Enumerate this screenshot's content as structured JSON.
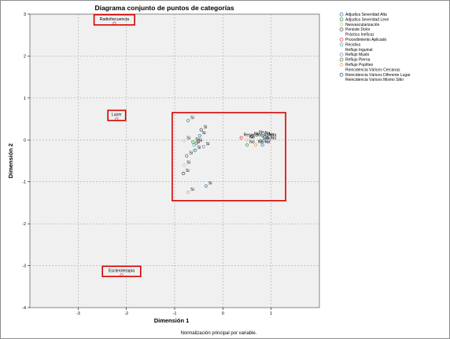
{
  "chart_data": {
    "type": "scatter",
    "title": "Diagrama conjunto de puntos de categorías",
    "xlabel": "Dimensión 1",
    "ylabel": "Dimensión 2",
    "footnote": "Normalización principal por variable.",
    "xlim": [
      -4,
      2
    ],
    "ylim": [
      -4,
      3
    ],
    "xticks": [
      -3,
      -2,
      -1,
      0,
      1
    ],
    "yticks": [
      -4,
      -3,
      -2,
      -1,
      0,
      1,
      2,
      3
    ],
    "grid": true,
    "legend_position": "right",
    "legend": [
      {
        "name": "Adjudica Severidad Alta",
        "color": "#3b7fb8",
        "marker": "circle"
      },
      {
        "name": "Adjudica Severidad Leve",
        "color": "#3aa24a",
        "marker": "circle"
      },
      {
        "name": "Neovascularización",
        "color": "#d9c9a0",
        "marker": "circle"
      },
      {
        "name": "Persiste Dolor",
        "color": "#555555",
        "marker": "circle"
      },
      {
        "name": "Práctica Ineficaz",
        "color": "#ffffff",
        "marker": "none"
      },
      {
        "name": "Procedimiento Aplicado",
        "color": "#e05050",
        "marker": "circle"
      },
      {
        "name": "Recidiva",
        "color": "#50b8b8",
        "marker": "circle"
      },
      {
        "name": "Reflujo Inguinal",
        "color": "#ffffff",
        "marker": "none"
      },
      {
        "name": "Reflujo Muslo",
        "color": "#8888cc",
        "marker": "circle"
      },
      {
        "name": "Reflujo Pierna",
        "color": "#5a8a3a",
        "marker": "circle"
      },
      {
        "name": "Reflujo Poplíteo",
        "color": "#e8a060",
        "marker": "circle"
      },
      {
        "name": "Reincidencia Várices Cercanas",
        "color": "#ffffff",
        "marker": "none"
      },
      {
        "name": "Reincidencia Várices Diferente Lugar",
        "color": "#2e6e8e",
        "marker": "circle"
      },
      {
        "name": "Reincidencia Várices Mismo Sitio",
        "color": "#ffffff",
        "marker": "none"
      }
    ],
    "points": [
      {
        "label": "Radiofrecuencia",
        "x": -2.25,
        "y": 2.78,
        "color": "#e05050",
        "boxed": true
      },
      {
        "label": "Laser",
        "x": -2.2,
        "y": 0.5,
        "color": "#e05050",
        "boxed": true
      },
      {
        "label": "Escleroterapia",
        "x": -2.1,
        "y": -3.22,
        "color": "#e05050",
        "boxed": true
      },
      {
        "label": "Resección Abierta",
        "x": 0.38,
        "y": 0.05,
        "color": "#e05050"
      },
      {
        "label": "Si",
        "x": -0.72,
        "y": 0.46,
        "color": "#3aa24a"
      },
      {
        "label": "Si",
        "x": -0.45,
        "y": 0.24,
        "color": "#555555"
      },
      {
        "label": "Si",
        "x": -0.48,
        "y": 0.1,
        "color": "#3b7fb8"
      },
      {
        "label": "Si",
        "x": -0.8,
        "y": -0.02,
        "color": "#d9c9a0"
      },
      {
        "label": "Si",
        "x": -0.62,
        "y": -0.05,
        "color": "#3aa24a"
      },
      {
        "label": "Si",
        "x": -0.55,
        "y": -0.08,
        "color": "#5a8a3a"
      },
      {
        "label": "Si",
        "x": -0.4,
        "y": -0.16,
        "color": "#8888cc"
      },
      {
        "label": "Si",
        "x": -0.6,
        "y": -0.12,
        "color": "#50b8b8"
      },
      {
        "label": "Si",
        "x": -0.58,
        "y": -0.25,
        "color": "#2e6e8e"
      },
      {
        "label": "Si",
        "x": -0.75,
        "y": -0.38,
        "color": "#3b7fb8"
      },
      {
        "label": "Si",
        "x": -0.8,
        "y": -0.6,
        "color": "#d9c9a0"
      },
      {
        "label": "Si",
        "x": -0.82,
        "y": -0.8,
        "color": "#555555"
      },
      {
        "label": "Si",
        "x": -0.35,
        "y": -1.1,
        "color": "#3b7fb8"
      },
      {
        "label": "Si",
        "x": -0.72,
        "y": -1.25,
        "color": "#e8a060"
      },
      {
        "label": "No",
        "x": 0.7,
        "y": 0.12,
        "color": "#3aa24a"
      },
      {
        "label": "No",
        "x": 0.82,
        "y": 0.1,
        "color": "#3b7fb8"
      },
      {
        "label": "No",
        "x": 0.6,
        "y": 0.08,
        "color": "#555555"
      },
      {
        "label": "No",
        "x": 0.9,
        "y": 0.06,
        "color": "#50b8b8"
      },
      {
        "label": "No",
        "x": 0.5,
        "y": 0.0,
        "color": "#d9c9a0"
      },
      {
        "label": "No",
        "x": 0.78,
        "y": -0.02,
        "color": "#3aa24a"
      },
      {
        "label": "No",
        "x": 0.85,
        "y": -0.02,
        "color": "#2e6e8e"
      },
      {
        "label": "No",
        "x": 0.95,
        "y": -0.02,
        "color": "#8888cc"
      },
      {
        "label": "No",
        "x": 0.5,
        "y": -0.12,
        "color": "#5a8a3a"
      },
      {
        "label": "No",
        "x": 0.68,
        "y": -0.12,
        "color": "#e8a060"
      },
      {
        "label": "No",
        "x": 0.82,
        "y": -0.12,
        "color": "#3b7fb8"
      }
    ],
    "highlight_region": {
      "x": [
        -1.05,
        1.3
      ],
      "y": [
        -1.45,
        0.65
      ]
    }
  }
}
